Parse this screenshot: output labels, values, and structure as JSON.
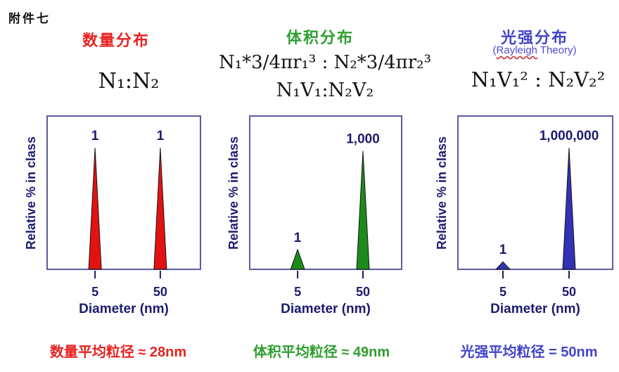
{
  "corner_note": "附件七",
  "colors": {
    "background": "#ffffff",
    "box_border": "#5c5ca0",
    "label_navy": "#1b1b6e",
    "formula_black": "#141414",
    "red": "#e62323",
    "green": "#2f9e2f",
    "blue": "#4244c8",
    "subtitle_blue": "#4c4ccf",
    "squiggle_red": "#cc2222"
  },
  "panels": [
    {
      "title": "数量分布",
      "title_color": "#e62323",
      "formulas": [
        "N₁:N₂"
      ],
      "caption": "数量平均粒径 ≈ 28nm",
      "caption_color": "#e62323"
    },
    {
      "title": "体积分布",
      "title_color": "#2f9e2f",
      "formulas": [
        "N₁*3/4πr₁³ : N₂*3/4πr₂³",
        "N₁V₁:N₂V₂"
      ],
      "caption": "体积平均粒径 ≈ 49nm",
      "caption_color": "#2f9e2f"
    },
    {
      "title": "光强分布",
      "title_color": "#4244c8",
      "subtitle": {
        "prefix": "(",
        "underlined": "Rayleigh",
        "suffix": " Theory)"
      },
      "formulas": [
        "N₁V₁² : N₂V₂²"
      ],
      "caption": "光强平均粒径 = 50nm",
      "caption_color": "#4244c8"
    }
  ],
  "chart_data": [
    {
      "type": "area",
      "title": "数量分布",
      "x": [
        5,
        50
      ],
      "values": [
        1,
        1
      ],
      "xlabel": "Diameter (nm)",
      "ylabel": "Relative % in class",
      "x_tick_labels": [
        "5",
        "50"
      ],
      "grid": false,
      "peak_color": "#e31212",
      "peaks": [
        {
          "x": 5,
          "value": 1,
          "label": "1",
          "x_frac": 0.314,
          "h_frac": 0.8,
          "half_width": 9
        },
        {
          "x": 50,
          "value": 1,
          "label": "1",
          "x_frac": 0.736,
          "h_frac": 0.8,
          "half_width": 9
        }
      ]
    },
    {
      "type": "area",
      "title": "体积分布",
      "x": [
        5,
        50
      ],
      "values": [
        1,
        1000
      ],
      "xlabel": "Diameter (nm)",
      "ylabel": "Relative % in class",
      "x_tick_labels": [
        "5",
        "50"
      ],
      "grid": false,
      "peak_color": "#1c8a1c",
      "peaks": [
        {
          "x": 5,
          "value": 1,
          "label": "1",
          "x_frac": 0.317,
          "h_frac": 0.13,
          "half_width": 10
        },
        {
          "x": 50,
          "value": 1000,
          "label": "1,000",
          "x_frac": 0.743,
          "h_frac": 0.78,
          "half_width": 9
        }
      ]
    },
    {
      "type": "area",
      "title": "光强分布",
      "x": [
        5,
        50
      ],
      "values": [
        1,
        1000000
      ],
      "xlabel": "Diameter (nm)",
      "ylabel": "Relative % in class",
      "x_tick_labels": [
        "5",
        "50"
      ],
      "grid": false,
      "peak_color": "#3232b4",
      "peaks": [
        {
          "x": 5,
          "value": 1,
          "label": "1",
          "x_frac": 0.293,
          "h_frac": 0.05,
          "half_width": 10
        },
        {
          "x": 50,
          "value": 1000000,
          "label": "1,000,000",
          "x_frac": 0.716,
          "h_frac": 0.8,
          "half_width": 9
        }
      ]
    }
  ]
}
